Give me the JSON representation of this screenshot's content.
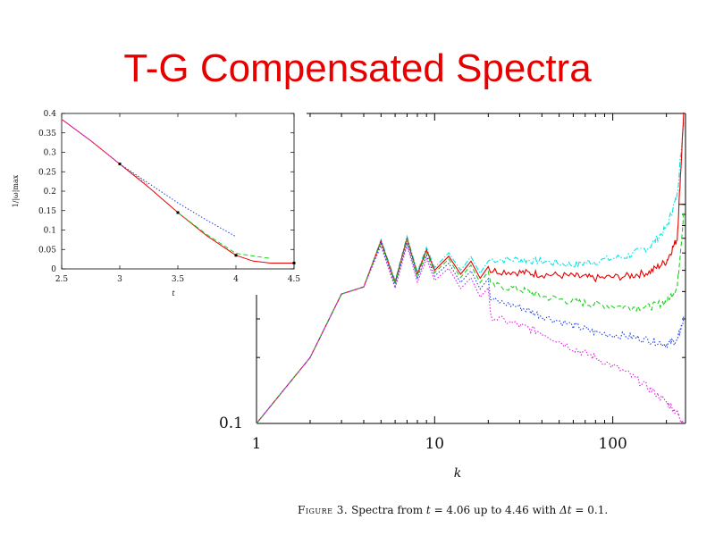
{
  "slide": {
    "title": "T-G Compensated Spectra"
  },
  "caption": {
    "label": "Figure 3.",
    "text_part1": " Spectra from ",
    "var_t": "t",
    "text_part2": " = 4.06 up to 4.46 with ",
    "var_dt": "Δt",
    "text_part3": " = 0.1."
  },
  "chart_data": [
    {
      "id": "main",
      "type": "line",
      "xscale": "log",
      "yscale": "log",
      "xlabel": "k",
      "ylabel": "",
      "xlim": [
        1,
        256
      ],
      "ylim": [
        0.1,
        2.6
      ],
      "x_ticks": [
        "1",
        "10",
        "100"
      ],
      "y_ticks": [
        "0.1"
      ],
      "grid": false,
      "common_rise": {
        "k": [
          1,
          2,
          3,
          4,
          5,
          6,
          7,
          8,
          9,
          10,
          12,
          14,
          16,
          18,
          20
        ],
        "y": [
          0.1,
          0.2,
          0.39,
          0.42,
          0.68,
          0.44,
          0.7,
          0.48,
          0.62,
          0.5,
          0.58,
          0.48,
          0.55,
          0.46,
          0.52
        ]
      },
      "series": [
        {
          "color": "#00e5e5",
          "style": "dash-dot",
          "k": [
            20,
            30,
            40,
            60,
            80,
            120,
            160,
            200,
            230,
            250
          ],
          "y": [
            0.56,
            0.56,
            0.55,
            0.53,
            0.55,
            0.58,
            0.64,
            0.78,
            1.1,
            2.4
          ]
        },
        {
          "color": "#e60000",
          "style": "solid",
          "k": [
            20,
            30,
            40,
            60,
            80,
            120,
            160,
            200,
            230,
            250
          ],
          "y": [
            0.5,
            0.49,
            0.48,
            0.47,
            0.46,
            0.47,
            0.49,
            0.55,
            0.7,
            2.6
          ]
        },
        {
          "color": "#20d020",
          "style": "dashed",
          "k": [
            20,
            30,
            40,
            60,
            80,
            120,
            160,
            200,
            230,
            250
          ],
          "y": [
            0.43,
            0.41,
            0.38,
            0.36,
            0.35,
            0.34,
            0.34,
            0.36,
            0.42,
            0.9
          ]
        },
        {
          "color": "#2040e0",
          "style": "dotted",
          "k": [
            20,
            30,
            40,
            60,
            80,
            120,
            160,
            200,
            230,
            250
          ],
          "y": [
            0.37,
            0.34,
            0.31,
            0.28,
            0.26,
            0.25,
            0.24,
            0.23,
            0.24,
            0.3
          ]
        },
        {
          "color": "#e020e0",
          "style": "dotted",
          "k": [
            20,
            30,
            40,
            60,
            80,
            120,
            160,
            200,
            230,
            250
          ],
          "y": [
            0.31,
            0.28,
            0.26,
            0.22,
            0.2,
            0.17,
            0.145,
            0.125,
            0.112,
            0.1
          ]
        }
      ]
    },
    {
      "id": "inset",
      "type": "line",
      "xlabel": "t",
      "ylabel": "1/|ω|max",
      "xlim": [
        2.5,
        4.5
      ],
      "ylim": [
        0,
        0.4
      ],
      "x_ticks": [
        "2.5",
        "3",
        "3.5",
        "4",
        "4.5"
      ],
      "y_ticks": [
        "0",
        "0.05",
        "0.1",
        "0.15",
        "0.2",
        "0.25",
        "0.3",
        "0.35",
        "0.4"
      ],
      "grid": false,
      "series": [
        {
          "color": "#e60000",
          "style": "solid",
          "x": [
            2.5,
            2.75,
            3.0,
            3.25,
            3.5,
            3.75,
            4.0,
            4.15,
            4.3,
            4.5
          ],
          "y": [
            0.385,
            0.33,
            0.27,
            0.21,
            0.145,
            0.085,
            0.035,
            0.02,
            0.015,
            0.015
          ]
        },
        {
          "color": "#20d020",
          "style": "dashed",
          "x": [
            3.5,
            3.75,
            4.0,
            4.15,
            4.3
          ],
          "y": [
            0.145,
            0.088,
            0.04,
            0.033,
            0.027
          ]
        },
        {
          "color": "#2040e0",
          "style": "dotted",
          "x": [
            3.0,
            3.25,
            3.5,
            3.75,
            4.0
          ],
          "y": [
            0.27,
            0.22,
            0.17,
            0.125,
            0.083
          ]
        },
        {
          "color": "#e020e0",
          "style": "dotted",
          "x": [
            2.5,
            2.75,
            3.0,
            3.25
          ],
          "y": [
            0.385,
            0.33,
            0.27,
            0.215
          ]
        }
      ],
      "markers": {
        "color": "#000000",
        "x": [
          3.0,
          3.5,
          4.0,
          4.5
        ],
        "y": [
          0.27,
          0.145,
          0.035,
          0.015
        ]
      }
    }
  ]
}
